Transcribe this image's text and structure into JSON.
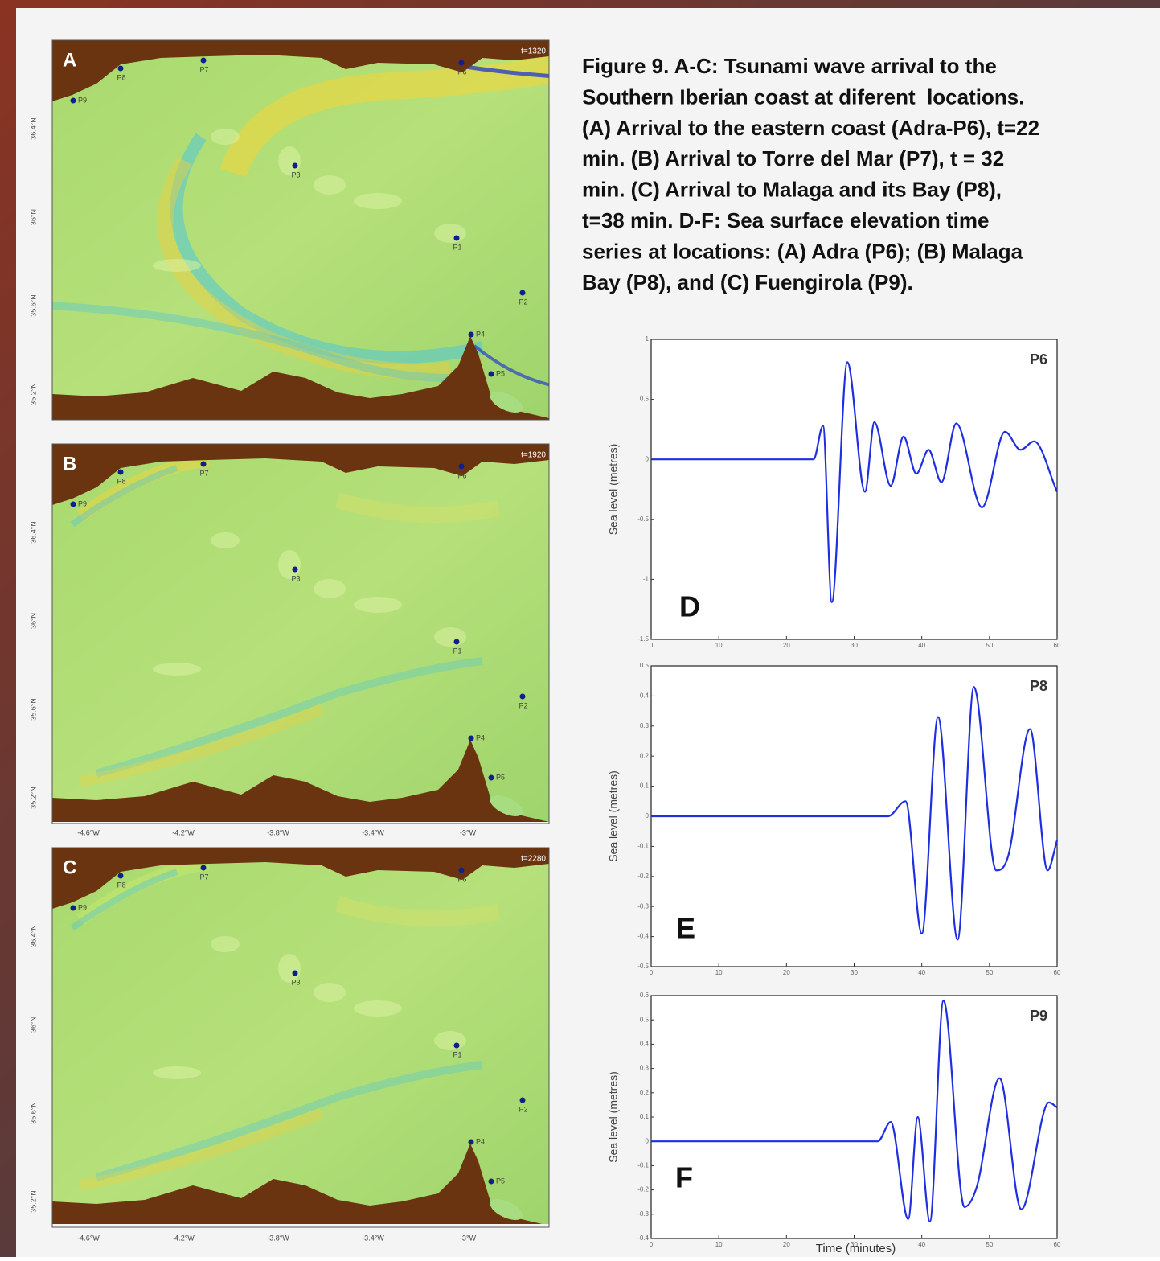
{
  "caption": [
    "Figure 9. A-C: Tsunami wave arrival to the",
    "Southern Iberian coast at diferent  locations.",
    "(A) Arrival to the eastern coast (Adra-P6), t=22",
    "min. (B) Arrival to Torre del Mar (P7), t = 32",
    "min. (C) Arrival to Malaga and its Bay (P8),",
    "t=38 min. D-F: Sea surface elevation time",
    "series at locations: (A) Adra (P6); (B) Malaga",
    "Bay (P8), and (C) Fuengirola (P9)."
  ],
  "maps": [
    {
      "label": "A",
      "time": "t=1320"
    },
    {
      "label": "B",
      "time": "t=1920"
    },
    {
      "label": "C",
      "time": "t=2280"
    }
  ],
  "map_points": [
    "P1",
    "P2",
    "P3",
    "P4",
    "P5",
    "P6",
    "P7",
    "P8",
    "P9"
  ],
  "map_lat_labels": [
    "36.4°N",
    "36°N",
    "35.6°N",
    "35.2°N"
  ],
  "map_lon_labels": [
    "-4.6°W",
    "-4.2°W",
    "-3.8°W",
    "-3.4°W",
    "-3°W"
  ],
  "chart_data": [
    {
      "type": "line",
      "panel": "D",
      "title": "P6",
      "ylabel": "Sea level (metres)",
      "x": [
        0,
        24,
        25.4,
        26.7,
        29,
        31.6,
        33,
        35.4,
        37.3,
        39.2,
        41,
        42.9,
        45.1,
        48.9,
        52.3,
        54.6,
        56.6,
        60
      ],
      "series": [
        {
          "color": "#1f2fe0",
          "values": [
            0,
            0,
            0.28,
            -1.19,
            0.81,
            -0.27,
            0.31,
            -0.22,
            0.19,
            -0.12,
            0.08,
            -0.19,
            0.3,
            -0.4,
            0.23,
            0.08,
            0.15,
            -0.27
          ]
        }
      ],
      "xlim": [
        0,
        60
      ],
      "xticks": [
        0,
        10,
        20,
        30,
        40,
        50,
        60
      ],
      "ylim": [
        -1.5,
        1
      ],
      "yticks": [
        -1.5,
        -1,
        -0.5,
        0,
        0.5,
        1
      ]
    },
    {
      "type": "line",
      "panel": "E",
      "title": "P8",
      "ylabel": "Sea level (metres)",
      "x": [
        0,
        35,
        37.6,
        40,
        42.4,
        45.3,
        47.7,
        51,
        52.8,
        56,
        58.6,
        60
      ],
      "series": [
        {
          "color": "#1f2fe0",
          "values": [
            0,
            0,
            0.05,
            -0.39,
            0.33,
            -0.41,
            0.43,
            -0.18,
            -0.13,
            0.29,
            -0.18,
            -0.08
          ]
        }
      ],
      "xlim": [
        0,
        60
      ],
      "xticks": [
        0,
        10,
        20,
        30,
        40,
        50,
        60
      ],
      "ylim": [
        -0.5,
        0.5
      ],
      "yticks": [
        -0.5,
        -0.4,
        -0.3,
        -0.2,
        -0.1,
        0,
        0.1,
        0.2,
        0.3,
        0.4,
        0.5
      ]
    },
    {
      "type": "line",
      "panel": "F",
      "title": "P9",
      "ylabel": "Sea level (metres)",
      "xlabel": "Time (minutes)",
      "x": [
        0,
        33.5,
        35.4,
        38,
        39.4,
        41.2,
        43.2,
        46.3,
        48.1,
        51.5,
        54.7,
        58.8,
        60
      ],
      "series": [
        {
          "color": "#1f2fe0",
          "values": [
            0,
            0,
            0.08,
            -0.32,
            0.1,
            -0.33,
            0.58,
            -0.27,
            -0.19,
            0.26,
            -0.28,
            0.16,
            0.14
          ]
        }
      ],
      "xlim": [
        0,
        60
      ],
      "xticks": [
        0,
        10,
        20,
        30,
        40,
        50,
        60
      ],
      "ylim": [
        -0.4,
        0.6
      ],
      "yticks": [
        -0.4,
        -0.3,
        -0.2,
        -0.1,
        0,
        0.1,
        0.2,
        0.3,
        0.4,
        0.5,
        0.6
      ]
    }
  ]
}
